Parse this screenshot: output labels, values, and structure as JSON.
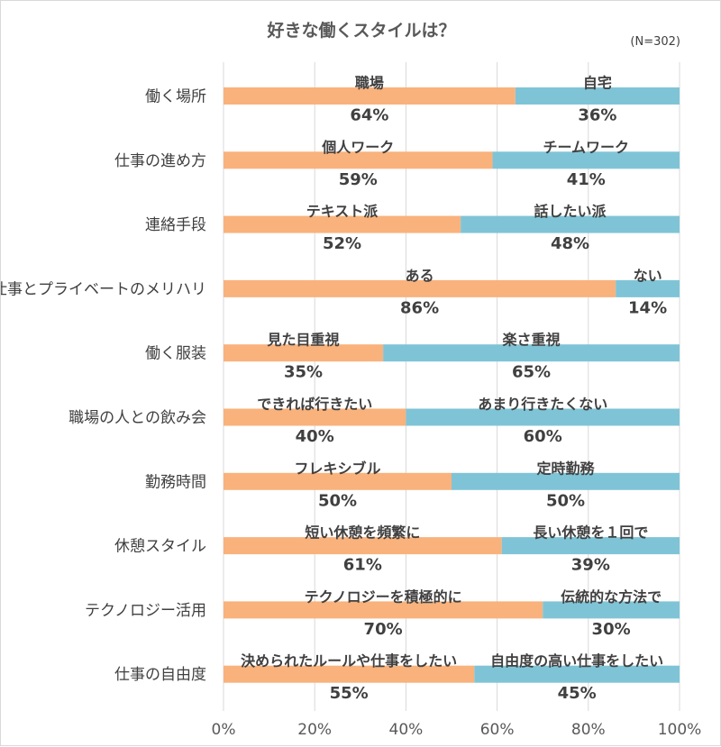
{
  "chart_data": {
    "type": "bar",
    "orientation": "horizontal",
    "stacked": true,
    "title": "好きな働くスタイルは？",
    "note": "(N=302)",
    "xlim": [
      0,
      100
    ],
    "xticks": [
      "0%",
      "20%",
      "40%",
      "60%",
      "80%",
      "100%"
    ],
    "colors": {
      "left": "#f9b27c",
      "right": "#7fc4d6"
    },
    "grid": true,
    "legend": "none",
    "categories": [
      "働く場所",
      "仕事の進め方",
      "連絡手段",
      "仕事とプライベートのメリハリ",
      "働く服装",
      "職場の人との飲み会",
      "勤務時間",
      "休憩スタイル",
      "テクノロジー活用",
      "仕事の自由度"
    ],
    "rows": [
      {
        "category": "働く場所",
        "left_label": "職場",
        "left_value": 64,
        "left_text": "64%",
        "right_label": "自宅",
        "right_value": 36,
        "right_text": "36%"
      },
      {
        "category": "仕事の進め方",
        "left_label": "個人ワーク",
        "left_value": 59,
        "left_text": "59%",
        "right_label": "チームワーク",
        "right_value": 41,
        "right_text": "41%"
      },
      {
        "category": "連絡手段",
        "left_label": "テキスト派",
        "left_value": 52,
        "left_text": "52%",
        "right_label": "話したい派",
        "right_value": 48,
        "right_text": "48%"
      },
      {
        "category": "仕事とプライベートのメリハリ",
        "left_label": "ある",
        "left_value": 86,
        "left_text": "86%",
        "right_label": "ない",
        "right_value": 14,
        "right_text": "14%"
      },
      {
        "category": "働く服装",
        "left_label": "見た目重視",
        "left_value": 35,
        "left_text": "35%",
        "right_label": "楽さ重視",
        "right_value": 65,
        "right_text": "65%"
      },
      {
        "category": "職場の人との飲み会",
        "left_label": "できれば行きたい",
        "left_value": 40,
        "left_text": "40%",
        "right_label": "あまり行きたくない",
        "right_value": 60,
        "right_text": "60%"
      },
      {
        "category": "勤務時間",
        "left_label": "フレキシブル",
        "left_value": 50,
        "left_text": "50%",
        "right_label": "定時勤務",
        "right_value": 50,
        "right_text": "50%"
      },
      {
        "category": "休憩スタイル",
        "left_label": "短い休憩を頻繁に",
        "left_value": 61,
        "left_text": "61%",
        "right_label": "長い休憩を１回で",
        "right_value": 39,
        "right_text": "39%"
      },
      {
        "category": "テクノロジー活用",
        "left_label": "テクノロジーを積極的に",
        "left_value": 70,
        "left_text": "70%",
        "right_label": "伝統的な方法で",
        "right_value": 30,
        "right_text": "30%"
      },
      {
        "category": "仕事の自由度",
        "left_label": "決められたルールや仕事をしたい",
        "left_value": 55,
        "left_text": "55%",
        "right_label": "自由度の高い仕事をしたい",
        "right_value": 45,
        "right_text": "45%"
      }
    ]
  }
}
